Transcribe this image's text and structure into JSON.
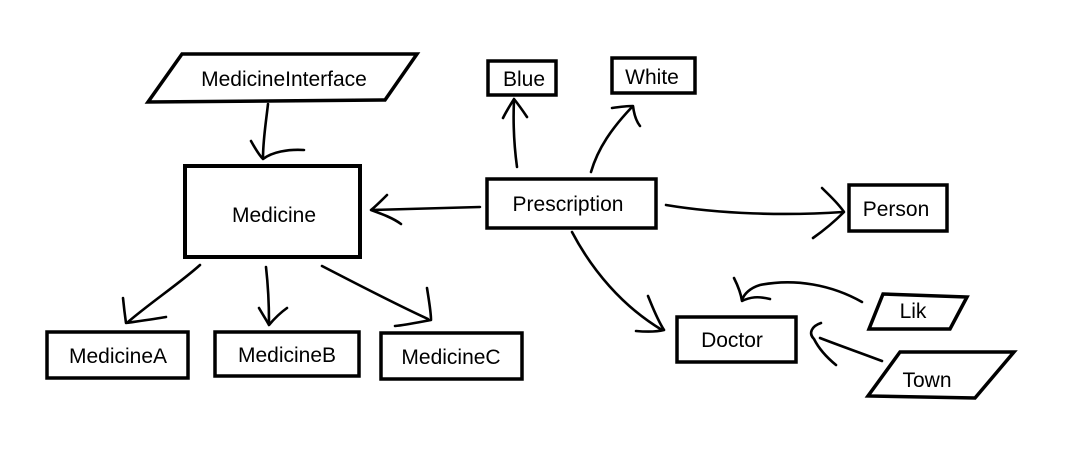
{
  "diagram": {
    "nodes": {
      "medicine_interface": "MedicineInterface",
      "medicine": "Medicine",
      "medicine_a": "MedicineA",
      "medicine_b": "MedicineB",
      "medicine_c": "MedicineC",
      "blue": "Blue",
      "white": "White",
      "prescription": "Prescription",
      "person": "Person",
      "doctor": "Doctor",
      "lik": "Lik",
      "town": "Town"
    }
  },
  "colors": {
    "ink": "#000000",
    "background": "#ffffff"
  }
}
